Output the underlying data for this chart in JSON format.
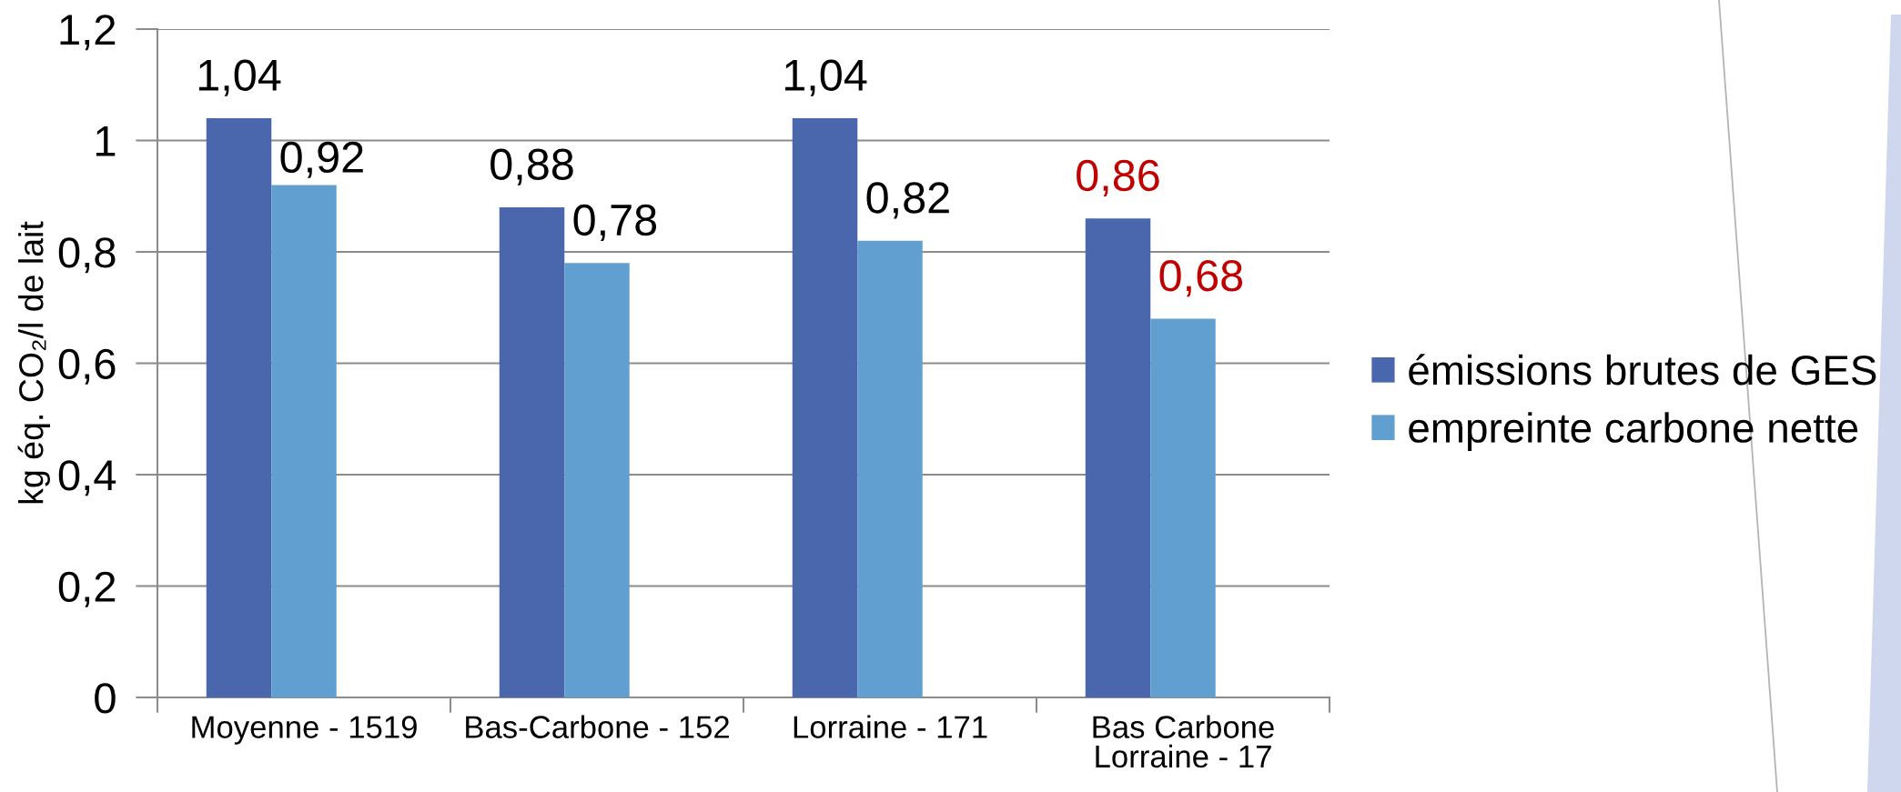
{
  "chart_data": {
    "type": "bar",
    "ylabel": "kg éq. CO₂/l de lait",
    "categories": [
      "Moyenne - 1519",
      "Bas-Carbone - 152",
      "Lorraine - 171",
      "Bas Carbone\nLorraine - 17"
    ],
    "series": [
      {
        "name": "émissions brutes de GES",
        "color": "#4a67ad",
        "values": [
          1.04,
          0.88,
          1.04,
          0.86
        ],
        "value_labels": [
          "1,04",
          "0,88",
          "1,04",
          "0,86"
        ]
      },
      {
        "name": "empreinte carbone nette",
        "color": "#629fd1",
        "values": [
          0.92,
          0.78,
          0.82,
          0.68
        ],
        "value_labels": [
          "0,92",
          "0,78",
          "0,82",
          "0,68"
        ]
      }
    ],
    "ylim": [
      0,
      1.2
    ],
    "yticks": [
      0,
      {
        "value": 0.2,
        "label": "0,2"
      },
      {
        "value": 0.4,
        "label": "0,4"
      },
      {
        "value": 0.6,
        "label": "0,6"
      },
      {
        "value": 0.8,
        "label": "0,8"
      },
      1,
      {
        "value": 1.2,
        "label": "1,2"
      }
    ],
    "grid": "y",
    "legend": "right"
  }
}
